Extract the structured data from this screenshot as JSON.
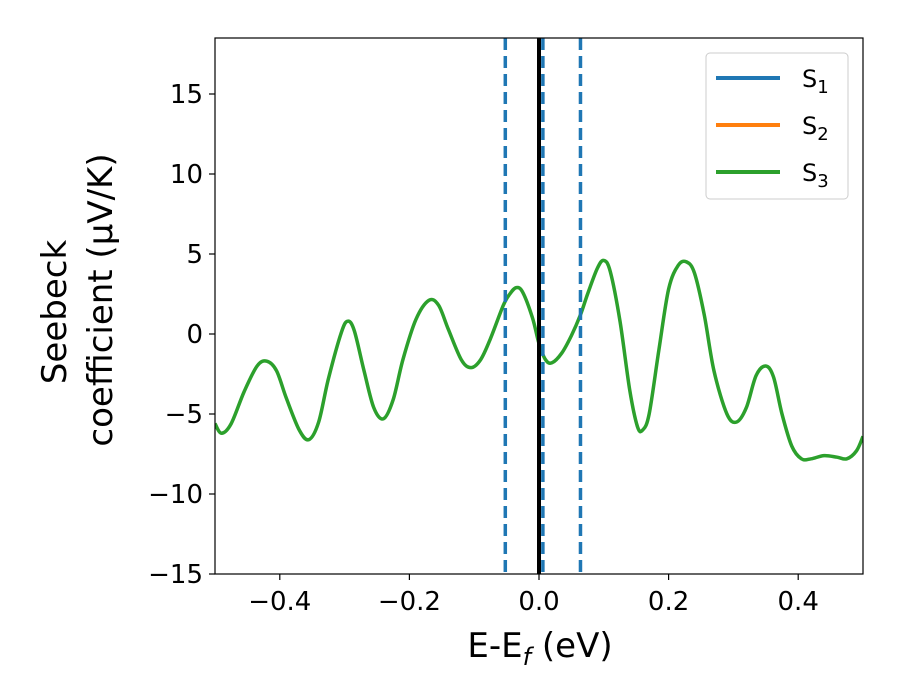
{
  "chart_data": {
    "type": "line",
    "xlabel": {
      "main": "E-E",
      "sub": "f",
      "rest": " (eV)"
    },
    "ylabel": {
      "line1": "Seebeck",
      "line2": "coefficient  (μV/K)"
    },
    "xlim": [
      -0.5,
      0.5
    ],
    "ylim": [
      -15,
      18.5
    ],
    "xticks": [
      -0.4,
      -0.2,
      0.0,
      0.2,
      0.4
    ],
    "xtick_labels": [
      "−0.4",
      "−0.2",
      "0.0",
      "0.2",
      "0.4"
    ],
    "yticks": [
      -15,
      -10,
      -5,
      0,
      5,
      10,
      15
    ],
    "ytick_labels": [
      "−15",
      "−10",
      "−5",
      "0",
      "5",
      "10",
      "15"
    ],
    "grid": false,
    "legend_position": "top-right",
    "colors": {
      "S1": "#1f77b4",
      "S2": "#ff7f0e",
      "S3": "#2ca02c",
      "fermi": "#000000"
    },
    "vlines": [
      {
        "x": -0.052,
        "style": "dashed",
        "color": "#1f77b4"
      },
      {
        "x": 0.006,
        "style": "dashed",
        "color": "#1f77b4"
      },
      {
        "x": 0.064,
        "style": "dashed",
        "color": "#1f77b4"
      },
      {
        "x": 0.0,
        "style": "solid",
        "color": "#000000"
      }
    ],
    "series": [
      {
        "name": {
          "main": "S",
          "sub": "1"
        },
        "color": "#1f77b4",
        "points": []
      },
      {
        "name": {
          "main": "S",
          "sub": "2"
        },
        "color": "#ff7f0e",
        "points": []
      },
      {
        "name": {
          "main": "S",
          "sub": "3"
        },
        "color": "#2ca02c",
        "points": [
          [
            -0.5,
            -5.6
          ],
          [
            -0.49,
            -6.2
          ],
          [
            -0.475,
            -5.6
          ],
          [
            -0.455,
            -3.6
          ],
          [
            -0.435,
            -2.0
          ],
          [
            -0.42,
            -1.7
          ],
          [
            -0.405,
            -2.3
          ],
          [
            -0.39,
            -4.0
          ],
          [
            -0.37,
            -6.0
          ],
          [
            -0.355,
            -6.6
          ],
          [
            -0.34,
            -5.5
          ],
          [
            -0.325,
            -2.8
          ],
          [
            -0.305,
            0.1
          ],
          [
            -0.295,
            0.8
          ],
          [
            -0.285,
            0.2
          ],
          [
            -0.27,
            -2.3
          ],
          [
            -0.255,
            -4.6
          ],
          [
            -0.24,
            -5.3
          ],
          [
            -0.225,
            -4.1
          ],
          [
            -0.21,
            -1.6
          ],
          [
            -0.19,
            0.9
          ],
          [
            -0.17,
            2.1
          ],
          [
            -0.155,
            1.8
          ],
          [
            -0.14,
            0.3
          ],
          [
            -0.12,
            -1.6
          ],
          [
            -0.105,
            -2.1
          ],
          [
            -0.09,
            -1.6
          ],
          [
            -0.075,
            -0.3
          ],
          [
            -0.055,
            1.8
          ],
          [
            -0.045,
            2.5
          ],
          [
            -0.035,
            2.9
          ],
          [
            -0.025,
            2.6
          ],
          [
            -0.01,
            1.0
          ],
          [
            0.0,
            -0.6
          ],
          [
            0.01,
            -1.6
          ],
          [
            0.02,
            -1.8
          ],
          [
            0.035,
            -1.2
          ],
          [
            0.05,
            -0.1
          ],
          [
            0.064,
            1.2
          ],
          [
            0.075,
            2.5
          ],
          [
            0.09,
            4.1
          ],
          [
            0.1,
            4.6
          ],
          [
            0.11,
            3.9
          ],
          [
            0.125,
            0.8
          ],
          [
            0.14,
            -3.5
          ],
          [
            0.152,
            -5.8
          ],
          [
            0.16,
            -6.0
          ],
          [
            0.17,
            -5.0
          ],
          [
            0.185,
            -1.0
          ],
          [
            0.2,
            2.8
          ],
          [
            0.215,
            4.3
          ],
          [
            0.228,
            4.5
          ],
          [
            0.24,
            3.8
          ],
          [
            0.255,
            1.2
          ],
          [
            0.27,
            -2.3
          ],
          [
            0.29,
            -5.0
          ],
          [
            0.305,
            -5.5
          ],
          [
            0.32,
            -4.6
          ],
          [
            0.335,
            -2.6
          ],
          [
            0.35,
            -2.0
          ],
          [
            0.362,
            -2.7
          ],
          [
            0.375,
            -5.0
          ],
          [
            0.39,
            -7.0
          ],
          [
            0.405,
            -7.8
          ],
          [
            0.42,
            -7.8
          ],
          [
            0.44,
            -7.6
          ],
          [
            0.46,
            -7.7
          ],
          [
            0.475,
            -7.8
          ],
          [
            0.49,
            -7.3
          ],
          [
            0.5,
            -6.4
          ]
        ]
      }
    ]
  }
}
